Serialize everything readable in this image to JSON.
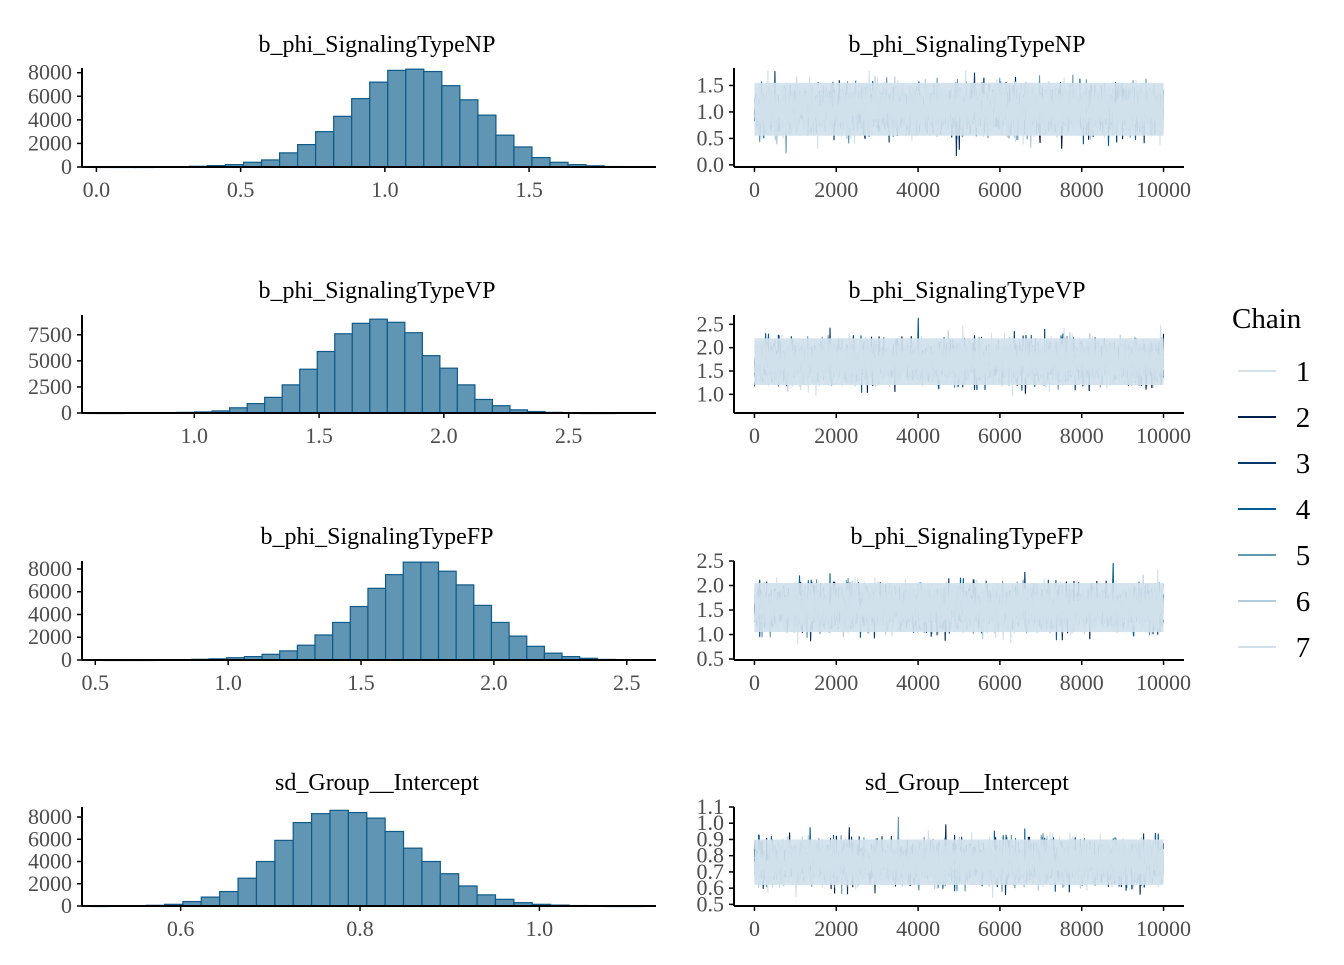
{
  "colors": {
    "hist_fill": "#6096b4",
    "hist_stroke": "#0e5a8a",
    "axis": "#000000",
    "tick_text": "#4d4d4d",
    "chains": [
      "#d1e1ec",
      "#011f4b",
      "#03396c",
      "#005b96",
      "#6497b1",
      "#b3cde0",
      "#d1e1ec"
    ]
  },
  "legend": {
    "title": "Chain",
    "entries": [
      "1",
      "2",
      "3",
      "4",
      "5",
      "6",
      "7"
    ]
  },
  "chart_data": [
    {
      "type": "bar",
      "panel": "hist-np",
      "title": "b_phi_SignalingTypeNP",
      "xlim": [
        -0.05,
        1.94
      ],
      "ylim": [
        0,
        8400
      ],
      "xticks": [
        0.0,
        0.5,
        1.0,
        1.5
      ],
      "xtick_labels": [
        "0.0",
        "0.5",
        "1.0",
        "1.5"
      ],
      "yticks": [
        0,
        2000,
        4000,
        6000,
        8000
      ],
      "ytick_labels": [
        "0",
        "2000",
        "4000",
        "6000",
        "8000"
      ],
      "bin_start": 0.01,
      "bin_width": 0.0625,
      "values": [
        10,
        10,
        10,
        20,
        30,
        60,
        120,
        200,
        400,
        600,
        1200,
        1900,
        3000,
        4300,
        5800,
        7200,
        8200,
        8300,
        8100,
        6900,
        5700,
        4400,
        2700,
        1700,
        800,
        400,
        200,
        100,
        40,
        20
      ]
    },
    {
      "type": "line",
      "panel": "trace-np",
      "title": "b_phi_SignalingTypeNP",
      "xlim": [
        -500,
        10500
      ],
      "ylim": [
        -0.04,
        1.83
      ],
      "xticks": [
        0,
        2000,
        4000,
        6000,
        8000,
        10000
      ],
      "xtick_labels": [
        "0",
        "2000",
        "4000",
        "6000",
        "8000",
        "10000"
      ],
      "yticks": [
        0.0,
        0.5,
        1.0,
        1.5
      ],
      "ytick_labels": [
        "0.0",
        "0.5",
        "1.0",
        "1.5"
      ],
      "iterations": [
        0,
        10000
      ],
      "mean": 1.05,
      "sd": 0.22,
      "band": [
        0.55,
        1.55
      ]
    },
    {
      "type": "bar",
      "panel": "hist-vp",
      "title": "b_phi_SignalingTypeVP",
      "xlim": [
        0.55,
        2.85
      ],
      "ylim": [
        0,
        9400
      ],
      "xticks": [
        1.0,
        1.5,
        2.0,
        2.5
      ],
      "xtick_labels": [
        "1.0",
        "1.5",
        "2.0",
        "2.5"
      ],
      "yticks": [
        0,
        2500,
        5000,
        7500
      ],
      "ytick_labels": [
        "0",
        "2500",
        "5000",
        "7500"
      ],
      "bin_start": 0.58,
      "bin_width": 0.0702,
      "values": [
        10,
        10,
        20,
        30,
        40,
        60,
        100,
        200,
        500,
        900,
        1500,
        2700,
        4200,
        5900,
        7600,
        8600,
        9000,
        8700,
        7700,
        5500,
        4300,
        2700,
        1300,
        700,
        300,
        140,
        60,
        20,
        10,
        10
      ]
    },
    {
      "type": "line",
      "panel": "trace-vp",
      "title": "b_phi_SignalingTypeVP",
      "xlim": [
        -500,
        10500
      ],
      "ylim": [
        0.6,
        2.7
      ],
      "xticks": [
        0,
        2000,
        4000,
        6000,
        8000,
        10000
      ],
      "xtick_labels": [
        "0",
        "2000",
        "4000",
        "6000",
        "8000",
        "10000"
      ],
      "yticks": [
        1.0,
        1.5,
        2.0,
        2.5
      ],
      "ytick_labels": [
        "1.0",
        "1.5",
        "2.0",
        "2.5"
      ],
      "iterations": [
        0,
        10000
      ],
      "mean": 1.7,
      "sd": 0.22,
      "band": [
        1.2,
        2.2
      ]
    },
    {
      "type": "bar",
      "panel": "hist-fp",
      "title": "b_phi_SignalingTypeFP",
      "xlim": [
        0.45,
        2.61
      ],
      "ylim": [
        0,
        8700
      ],
      "xticks": [
        0.5,
        1.0,
        1.5,
        2.0,
        2.5
      ],
      "xtick_labels": [
        "0.5",
        "1.0",
        "1.5",
        "2.0",
        "2.5"
      ],
      "bin_start": 0.53,
      "bin_width": 0.0664,
      "yticks": [
        0,
        2000,
        4000,
        6000,
        8000
      ],
      "ytick_labels": [
        "0",
        "2000",
        "4000",
        "6000",
        "8000"
      ],
      "values": [
        10,
        10,
        10,
        20,
        30,
        60,
        100,
        200,
        300,
        500,
        800,
        1300,
        2200,
        3300,
        4700,
        6300,
        7500,
        8600,
        8600,
        7800,
        6600,
        4800,
        3300,
        2100,
        1200,
        600,
        300,
        150,
        50,
        20
      ]
    },
    {
      "type": "line",
      "panel": "trace-fp",
      "title": "b_phi_SignalingTypeFP",
      "xlim": [
        -500,
        10500
      ],
      "ylim": [
        0.48,
        2.5
      ],
      "xticks": [
        0,
        2000,
        4000,
        6000,
        8000,
        10000
      ],
      "xtick_labels": [
        "0",
        "2000",
        "4000",
        "6000",
        "8000",
        "10000"
      ],
      "yticks": [
        0.5,
        1.0,
        1.5,
        2.0,
        2.5
      ],
      "ytick_labels": [
        "0.5",
        "1.0",
        "1.5",
        "2.0",
        "2.5"
      ],
      "iterations": [
        0,
        10000
      ],
      "mean": 1.55,
      "sd": 0.22,
      "band": [
        1.05,
        2.05
      ]
    },
    {
      "type": "bar",
      "panel": "hist-sd",
      "title": "sd_Group__Intercept",
      "xlim": [
        0.49,
        1.13
      ],
      "ylim": [
        0,
        8900
      ],
      "xticks": [
        0.6,
        0.8,
        1.0
      ],
      "xtick_labels": [
        "0.6",
        "0.8",
        "1.0"
      ],
      "yticks": [
        0,
        2000,
        4000,
        6000,
        8000
      ],
      "ytick_labels": [
        "0",
        "2000",
        "4000",
        "6000",
        "8000"
      ],
      "bin_start": 0.5,
      "bin_width": 0.0205,
      "values": [
        10,
        20,
        30,
        60,
        150,
        400,
        800,
        1300,
        2500,
        4000,
        5900,
        7500,
        8300,
        8600,
        8400,
        7900,
        6700,
        5200,
        4000,
        2900,
        1800,
        1000,
        600,
        300,
        150,
        80,
        40,
        20,
        10,
        10
      ]
    },
    {
      "type": "line",
      "panel": "trace-sd",
      "title": "sd_Group__Intercept",
      "xlim": [
        -500,
        10500
      ],
      "ylim": [
        0.49,
        1.1
      ],
      "xticks": [
        0,
        2000,
        4000,
        6000,
        8000,
        10000
      ],
      "xtick_labels": [
        "0",
        "2000",
        "4000",
        "6000",
        "8000",
        "10000"
      ],
      "yticks": [
        0.5,
        0.6,
        0.7,
        0.8,
        0.9,
        1.0,
        1.1
      ],
      "ytick_labels": [
        "0.5",
        "0.6",
        "0.7",
        "0.8",
        "0.9",
        "1.0",
        "1.1"
      ],
      "iterations": [
        0,
        10000
      ],
      "mean": 0.76,
      "sd": 0.065,
      "band": [
        0.62,
        0.9
      ]
    }
  ]
}
